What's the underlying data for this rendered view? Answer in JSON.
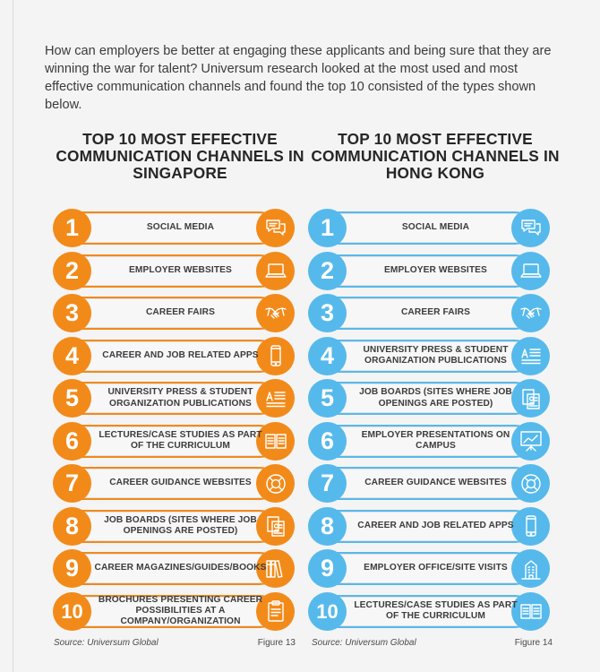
{
  "intro": "How can employers be better at engaging these applicants and being sure that they are winning the war for talent? Universum research looked at the most used and most effective communication channels and found the top 10 consisted of the types shown below.",
  "colors": {
    "singapore": "#f28a1a",
    "hong_kong": "#56b9ec"
  },
  "singapore": {
    "title": "TOP 10 MOST EFFECTIVE COMMUNICATION CHANNELS IN SINGAPORE",
    "source": "Source: Universum Global",
    "figure": "Figure 13",
    "items": [
      {
        "rank": "1",
        "label": "SOCIAL MEDIA",
        "icon": "chat-bubbles-icon"
      },
      {
        "rank": "2",
        "label": "EMPLOYER WEBSITES",
        "icon": "laptop-icon"
      },
      {
        "rank": "3",
        "label": "CAREER FAIRS",
        "icon": "handshake-icon"
      },
      {
        "rank": "4",
        "label": "CAREER AND JOB RELATED APPS",
        "icon": "smartphone-icon"
      },
      {
        "rank": "5",
        "label": "UNIVERSITY PRESS & STUDENT ORGANIZATION PUBLICATIONS",
        "icon": "text-document-icon"
      },
      {
        "rank": "6",
        "label": "LECTURES/CASE STUDIES AS PART OF THE CURRICULUM",
        "icon": "open-book-icon"
      },
      {
        "rank": "7",
        "label": "CAREER GUIDANCE WEBSITES",
        "icon": "lifebuoy-icon"
      },
      {
        "rank": "8",
        "label": "JOB BOARDS (SITES WHERE JOB OPENINGS ARE POSTED)",
        "icon": "job-board-icon"
      },
      {
        "rank": "9",
        "label": "CAREER MAGAZINES/GUIDES/BOOKS",
        "icon": "books-icon"
      },
      {
        "rank": "10",
        "label": "BROCHURES PRESENTING CAREER POSSIBILITIES AT A COMPANY/ORGANIZATION",
        "icon": "clipboard-icon"
      }
    ]
  },
  "hong_kong": {
    "title": "TOP 10 MOST EFFECTIVE COMMUNICATION CHANNELS IN HONG KONG",
    "source": "Source: Universum Global",
    "figure": "Figure 14",
    "items": [
      {
        "rank": "1",
        "label": "SOCIAL MEDIA",
        "icon": "chat-bubbles-icon"
      },
      {
        "rank": "2",
        "label": "EMPLOYER WEBSITES",
        "icon": "laptop-icon"
      },
      {
        "rank": "3",
        "label": "CAREER FAIRS",
        "icon": "handshake-icon"
      },
      {
        "rank": "4",
        "label": "UNIVERSITY PRESS & STUDENT ORGANIZATION PUBLICATIONS",
        "icon": "text-document-icon"
      },
      {
        "rank": "5",
        "label": "JOB BOARDS (SITES WHERE JOB OPENINGS ARE POSTED)",
        "icon": "job-board-icon"
      },
      {
        "rank": "6",
        "label": "EMPLOYER PRESENTATIONS ON CAMPUS",
        "icon": "presentation-board-icon"
      },
      {
        "rank": "7",
        "label": "CAREER GUIDANCE WEBSITES",
        "icon": "lifebuoy-icon"
      },
      {
        "rank": "8",
        "label": "CAREER AND JOB RELATED APPS",
        "icon": "smartphone-icon"
      },
      {
        "rank": "9",
        "label": "EMPLOYER OFFICE/SITE VISITS",
        "icon": "office-building-icon"
      },
      {
        "rank": "10",
        "label": "LECTURES/CASE STUDIES AS PART OF THE CURRICULUM",
        "icon": "open-book-icon"
      }
    ]
  }
}
